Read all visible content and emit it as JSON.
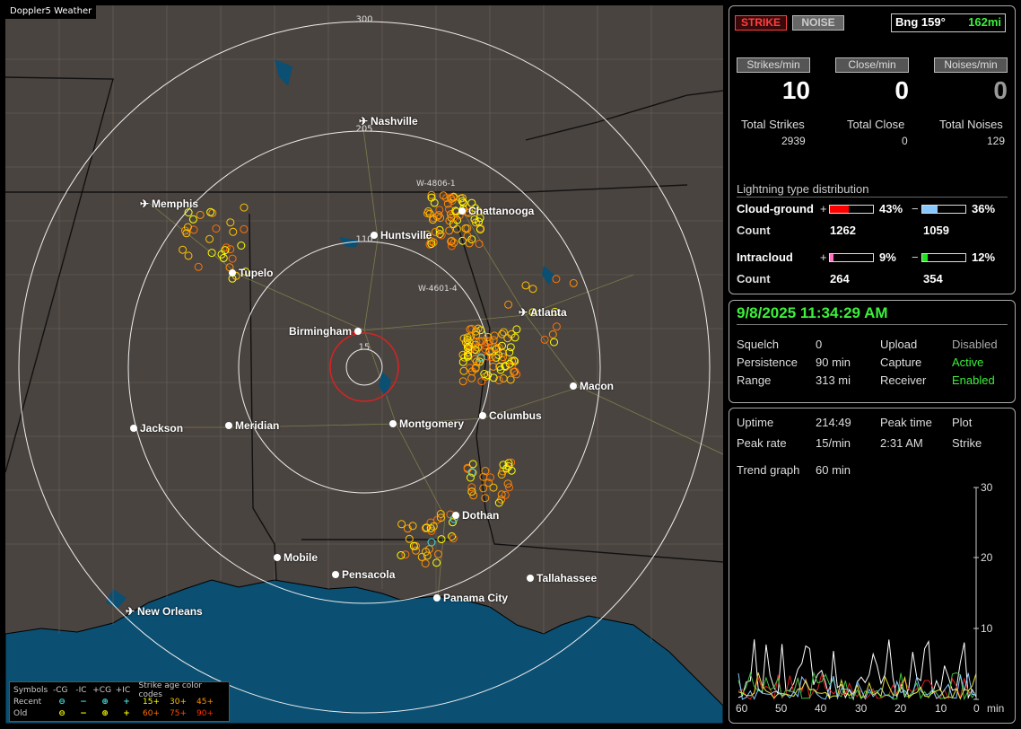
{
  "map": {
    "title": "Doppler5 Weather",
    "rings": [
      "300",
      "205",
      "110",
      "15"
    ],
    "waypoints": [
      "W-4806-1",
      "W-4601-4"
    ],
    "cities": [
      {
        "name": "Nashville",
        "kind": "airport"
      },
      {
        "name": "Chattanooga",
        "kind": "city"
      },
      {
        "name": "Memphis",
        "kind": "airport"
      },
      {
        "name": "Huntsville",
        "kind": "city"
      },
      {
        "name": "Tupelo",
        "kind": "city"
      },
      {
        "name": "Atlanta",
        "kind": "airport"
      },
      {
        "name": "Birmingham",
        "kind": "city"
      },
      {
        "name": "Macon",
        "kind": "city"
      },
      {
        "name": "Jackson",
        "kind": "city"
      },
      {
        "name": "Meridian",
        "kind": "city"
      },
      {
        "name": "Montgomery",
        "kind": "city"
      },
      {
        "name": "Columbus",
        "kind": "city"
      },
      {
        "name": "Dothan",
        "kind": "city"
      },
      {
        "name": "Mobile",
        "kind": "city"
      },
      {
        "name": "Pensacola",
        "kind": "city"
      },
      {
        "name": "Tallahassee",
        "kind": "city"
      },
      {
        "name": "Panama City",
        "kind": "city"
      },
      {
        "name": "New Orleans",
        "kind": "airport"
      }
    ],
    "legend": {
      "symbols_label": "Symbols",
      "headers": [
        "-CG",
        "-IC",
        "+CG",
        "+IC"
      ],
      "age_title": "Strike age color codes",
      "recent_label": "Recent",
      "old_label": "Old",
      "recent_ages": [
        "15+",
        "30+",
        "45+"
      ],
      "old_ages": [
        "60+",
        "75+",
        "90+"
      ],
      "age_colors": [
        "#ffff00",
        "#ffc000",
        "#ff9000",
        "#ff7000",
        "#ff5000",
        "#ff3000"
      ]
    }
  },
  "stats": {
    "strike_btn": "STRIKE",
    "noise_btn": "NOISE",
    "bearing": "Bng 159°",
    "distance": "162mi",
    "strikes_min_label": "Strikes/min",
    "close_min_label": "Close/min",
    "noises_min_label": "Noises/min",
    "strikes_min": "10",
    "close_min": "0",
    "noises_min": "0",
    "total_strikes_label": "Total Strikes",
    "total_close_label": "Total Close",
    "total_noises_label": "Total Noises",
    "total_strikes": "2939",
    "total_close": "0",
    "total_noises": "129",
    "dist_title": "Lightning type distribution",
    "cg_label": "Cloud-ground",
    "ic_label": "Intracloud",
    "count_label": "Count",
    "plus": "+",
    "minus": "−",
    "cg_pos_pct": "43%",
    "cg_neg_pct": "36%",
    "cg_pos_count": "1262",
    "cg_neg_count": "1059",
    "ic_pos_pct": "9%",
    "ic_neg_pct": "12%",
    "ic_pos_count": "264",
    "ic_neg_count": "354",
    "cg_pos_frac": 0.43,
    "cg_neg_frac": 0.36,
    "ic_pos_frac": 0.09,
    "ic_neg_frac": 0.12,
    "colors": {
      "cg_pos": "#ff0000",
      "cg_neg": "#88c8ff",
      "ic_pos": "#ff70c0",
      "ic_neg": "#20e020"
    }
  },
  "status": {
    "datetime": "9/8/2025 11:34:29 AM",
    "squelch_label": "Squelch",
    "squelch": "0",
    "persistence_label": "Persistence",
    "persistence": "90 min",
    "range_label": "Range",
    "range": "313 mi",
    "upload_label": "Upload",
    "upload": "Disabled",
    "capture_label": "Capture",
    "capture": "Active",
    "receiver_label": "Receiver",
    "receiver": "Enabled"
  },
  "trend": {
    "uptime_label": "Uptime",
    "uptime": "214:49",
    "peak_time_label": "Peak time",
    "peak_time": "2:31 AM",
    "plot_label": "Plot",
    "plot": "Strike",
    "peak_rate_label": "Peak rate",
    "peak_rate": "15/min",
    "trend_graph_label": "Trend graph",
    "trend_graph": "60 min",
    "y_ticks": [
      "30",
      "20",
      "10"
    ],
    "x_ticks": [
      "60",
      "50",
      "40",
      "30",
      "20",
      "10",
      "0"
    ],
    "x_unit": "min"
  }
}
